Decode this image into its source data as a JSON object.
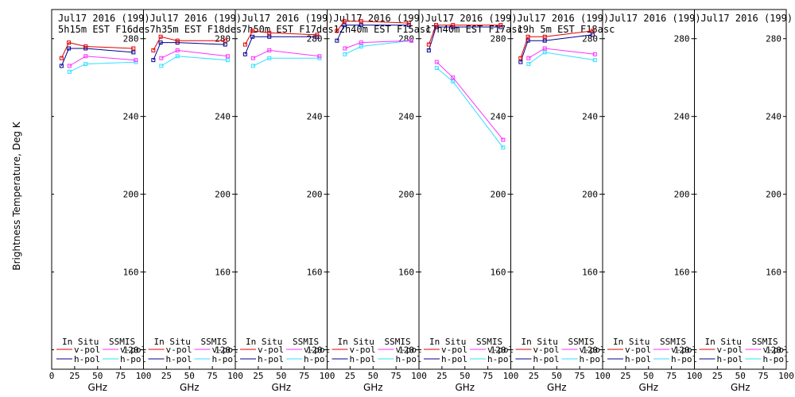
{
  "chart_data": {
    "type": "line",
    "ylabel": "Brightness Temperature, Deg K",
    "xlabel": "GHz",
    "xlim": [
      0,
      100
    ],
    "ylim": [
      110,
      295
    ],
    "xticks": [
      0,
      25,
      50,
      75,
      100
    ],
    "xtick_labels_first": [
      "0",
      "25",
      "50",
      "75",
      "100"
    ],
    "xtick_labels_other": [
      "25",
      "50",
      "75",
      "100"
    ],
    "yticks": [
      120,
      160,
      200,
      240,
      280
    ],
    "series_styles": [
      {
        "name": "In Situ v-pol",
        "color": "#e00000"
      },
      {
        "name": "In Situ h-pol",
        "color": "#000090"
      },
      {
        "name": "SSMIS v-pol",
        "color": "#ff30ff"
      },
      {
        "name": "SSMIS h-pol",
        "color": "#30e0ff"
      }
    ],
    "legend": {
      "in_situ": "In Situ",
      "ssmis": "SSMIS",
      "vpol": "v-pol",
      "hpol": "h-pol"
    },
    "panels": [
      {
        "title1": "Jul17 2016 (199)",
        "title2": "5h15m  EST  F16des",
        "insitu_v": [
          [
            10.7,
            270
          ],
          [
            18.7,
            278
          ],
          [
            37,
            276
          ],
          [
            89,
            275
          ]
        ],
        "insitu_h": [
          [
            10.7,
            266
          ],
          [
            18.7,
            275
          ],
          [
            37,
            275
          ],
          [
            89,
            273
          ]
        ],
        "ssmis_v": [
          [
            19.35,
            266
          ],
          [
            37,
            271
          ],
          [
            91.65,
            269
          ]
        ],
        "ssmis_h": [
          [
            19.35,
            263
          ],
          [
            37,
            267
          ],
          [
            91.65,
            268
          ]
        ]
      },
      {
        "title1": "Jul17 2016 (199)",
        "title2": "7h35m  EST  F18des",
        "insitu_v": [
          [
            10.7,
            274
          ],
          [
            18.7,
            281
          ],
          [
            37,
            279
          ],
          [
            89,
            279
          ]
        ],
        "insitu_h": [
          [
            10.7,
            269
          ],
          [
            18.7,
            278
          ],
          [
            37,
            278
          ],
          [
            89,
            277
          ]
        ],
        "ssmis_v": [
          [
            19.35,
            270
          ],
          [
            37,
            274
          ],
          [
            91.65,
            271
          ]
        ],
        "ssmis_h": [
          [
            19.35,
            266
          ],
          [
            37,
            271
          ],
          [
            91.65,
            269
          ]
        ]
      },
      {
        "title1": "Jul17 2016 (199)",
        "title2": "7h50m  EST  F17des",
        "insitu_v": [
          [
            10.7,
            277
          ],
          [
            18.7,
            284
          ],
          [
            37,
            283
          ],
          [
            89,
            282
          ]
        ],
        "insitu_h": [
          [
            10.7,
            272
          ],
          [
            18.7,
            281
          ],
          [
            37,
            281
          ],
          [
            89,
            281
          ]
        ],
        "ssmis_v": [
          [
            19.35,
            270
          ],
          [
            37,
            274
          ],
          [
            91.65,
            271
          ]
        ],
        "ssmis_h": [
          [
            19.35,
            266
          ],
          [
            37,
            270
          ],
          [
            91.65,
            270
          ]
        ]
      },
      {
        "title1": "Jul17 2016 (199)",
        "title2": "12h40m  EST  F15asc",
        "insitu_v": [
          [
            10.7,
            284
          ],
          [
            18.7,
            289
          ],
          [
            37,
            289
          ],
          [
            89,
            288
          ]
        ],
        "insitu_h": [
          [
            10.7,
            279
          ],
          [
            18.7,
            287
          ],
          [
            37,
            287
          ],
          [
            89,
            287
          ]
        ],
        "ssmis_v": [
          [
            19.35,
            275
          ],
          [
            37,
            278
          ],
          [
            91.65,
            279
          ]
        ],
        "ssmis_h": [
          [
            19.35,
            272
          ],
          [
            37,
            276
          ],
          [
            91.65,
            279
          ]
        ]
      },
      {
        "title1": "Jul17 2016 (199)",
        "title2": "17h40m  EST  F17asc",
        "insitu_v": [
          [
            10.7,
            277
          ],
          [
            18.7,
            287
          ],
          [
            37,
            287
          ],
          [
            89,
            287
          ]
        ],
        "insitu_h": [
          [
            10.7,
            274
          ],
          [
            18.7,
            286
          ],
          [
            37,
            286
          ],
          [
            89,
            286
          ]
        ],
        "ssmis_v": [
          [
            19.35,
            268
          ],
          [
            37,
            260
          ],
          [
            91.65,
            228
          ]
        ],
        "ssmis_h": [
          [
            19.35,
            265
          ],
          [
            37,
            258
          ],
          [
            91.65,
            224
          ]
        ]
      },
      {
        "title1": "Jul17 2016 (199)",
        "title2": "19h 5m  EST  F18asc",
        "insitu_v": [
          [
            10.7,
            270
          ],
          [
            18.7,
            281
          ],
          [
            37,
            281
          ],
          [
            89,
            284
          ]
        ],
        "insitu_h": [
          [
            10.7,
            268
          ],
          [
            18.7,
            279
          ],
          [
            37,
            279
          ],
          [
            89,
            282
          ]
        ],
        "ssmis_v": [
          [
            19.35,
            270
          ],
          [
            37,
            275
          ],
          [
            91.65,
            272
          ]
        ],
        "ssmis_h": [
          [
            19.35,
            267
          ],
          [
            37,
            273
          ],
          [
            91.65,
            269
          ]
        ]
      },
      {
        "title1": "Jul17 2016 (199)",
        "title2": "",
        "insitu_v": [],
        "insitu_h": [],
        "ssmis_v": [],
        "ssmis_h": []
      },
      {
        "title1": "Jul17 2016 (199)",
        "title2": "",
        "insitu_v": [],
        "insitu_h": [],
        "ssmis_v": [],
        "ssmis_h": []
      }
    ]
  }
}
